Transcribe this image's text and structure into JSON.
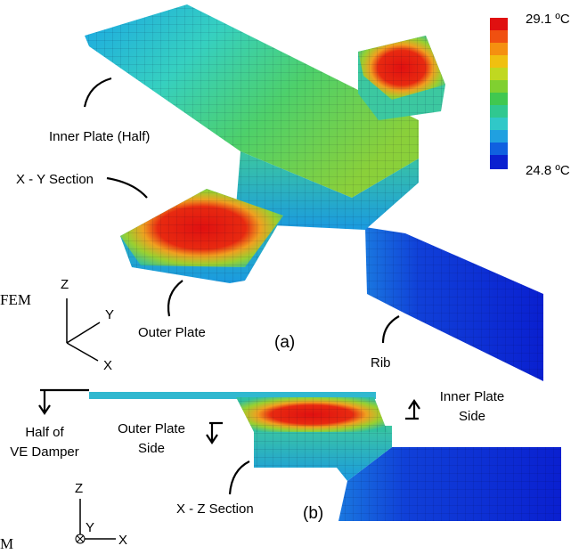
{
  "legend": {
    "max_label": "29.1 ºC",
    "min_label": "24.8 ºC"
  },
  "panel_a": {
    "inner_plate": "Inner Plate (Half)",
    "xy_section": "X - Y Section",
    "outer_plate": "Outer Plate",
    "rib": "Rib",
    "tag": "(a)",
    "side_text": "FEM",
    "axes": {
      "z": "Z",
      "y": "Y",
      "x": "X"
    }
  },
  "panel_b": {
    "inner_plate_side": [
      "Inner Plate",
      "Side"
    ],
    "half_damper": [
      "Half of",
      "VE Damper"
    ],
    "outer_plate_side": [
      "Outer Plate",
      "Side"
    ],
    "xz_section": "X - Z Section",
    "tag": "(b)",
    "side_text": "M",
    "axes": {
      "z": "Z",
      "y": "Y",
      "x": "X"
    }
  }
}
